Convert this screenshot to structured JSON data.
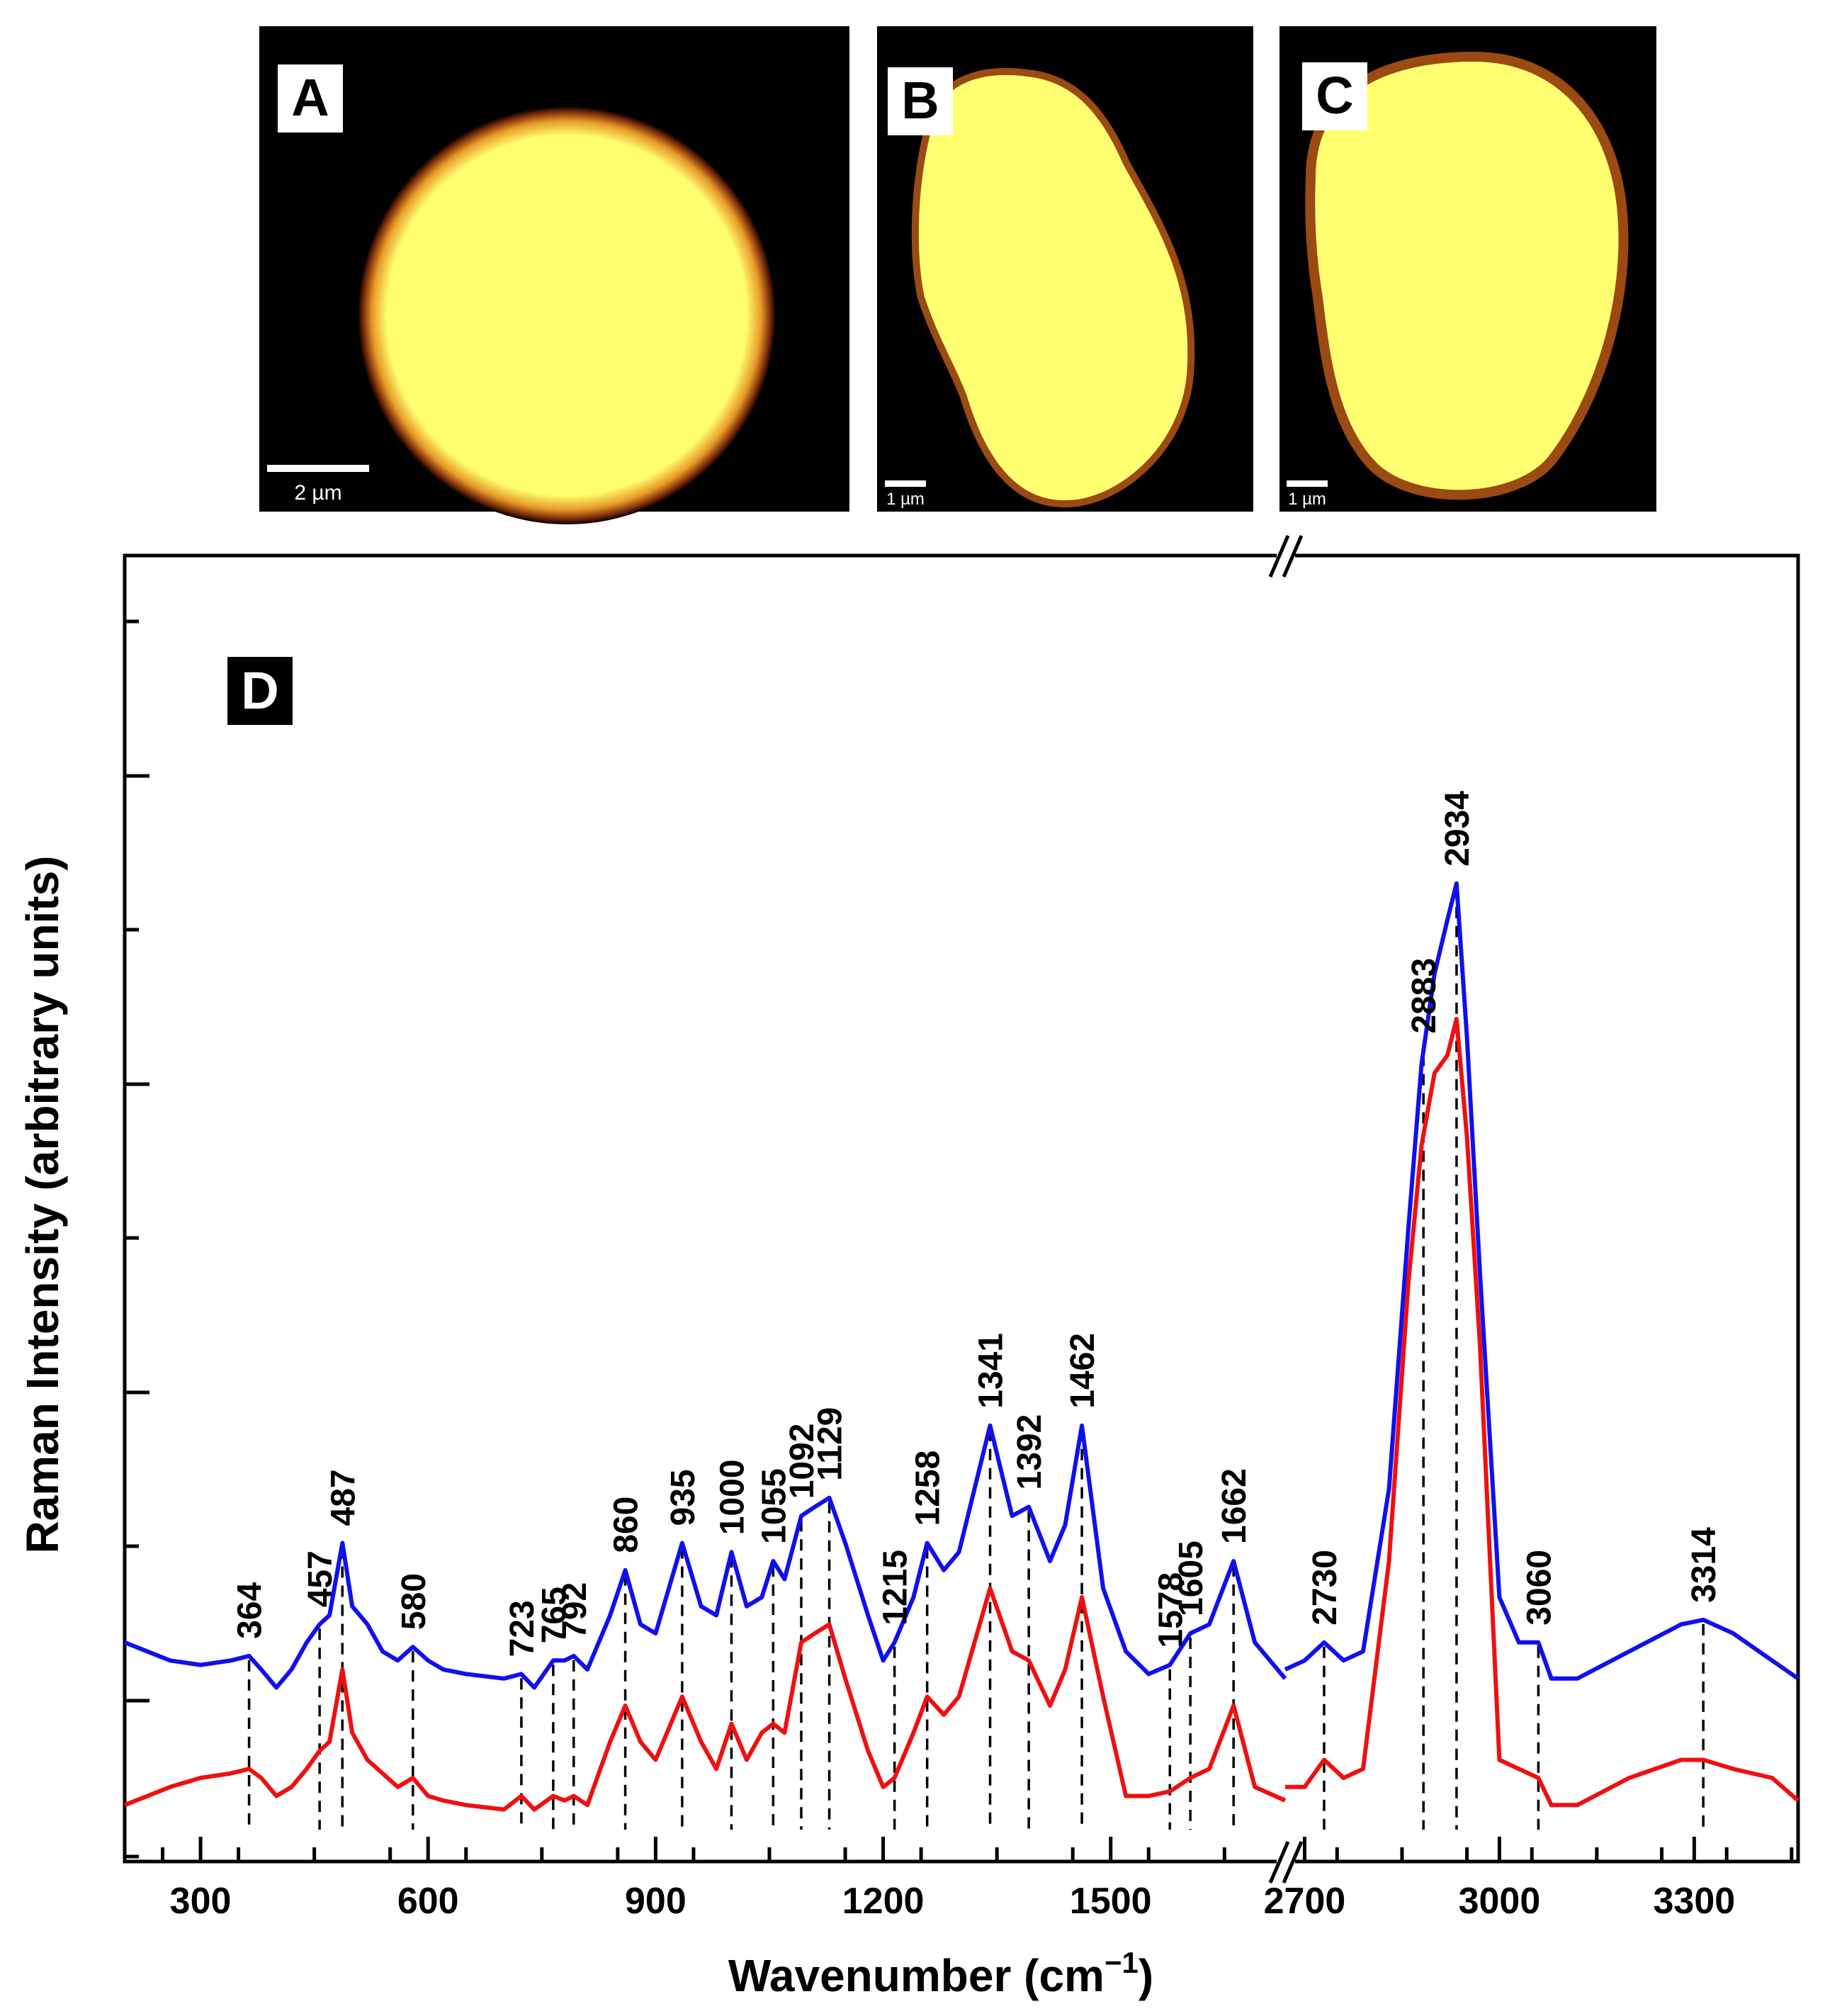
{
  "panels": [
    {
      "letter": "A",
      "scale_label": "2 µm"
    },
    {
      "letter": "B",
      "scale_label": "1 µm"
    },
    {
      "letter": "C",
      "scale_label": "1 µm"
    }
  ],
  "colors": {
    "blue_series": "#1010ee",
    "red_series": "#ee1010",
    "image_core": "#ffff70",
    "image_bg": "#000000"
  },
  "chart_data": {
    "type": "line",
    "panel_label": "D",
    "xlabel_main": "Wavenumber (cm",
    "xlabel_exp": "−1",
    "xlabel_close": ")",
    "ylabel": "Raman Intensity (arbitrary units)",
    "x_segments": [
      [
        200,
        1730
      ],
      [
        2670,
        3460
      ]
    ],
    "x_ticks_major": [
      300,
      600,
      900,
      1200,
      1500,
      2700,
      3000,
      3300
    ],
    "x_tick_labels": [
      "300",
      "600",
      "900",
      "1200",
      "1500",
      "2700",
      "3000",
      "3300"
    ],
    "ylim": [
      0,
      100
    ],
    "grid": false,
    "legend": "none",
    "annotated_peaks": [
      364,
      457,
      487,
      580,
      723,
      765,
      792,
      860,
      935,
      1000,
      1055,
      1092,
      1129,
      1215,
      1258,
      1341,
      1392,
      1462,
      1578,
      1605,
      1662,
      2730,
      2883,
      2934,
      3060,
      3314
    ],
    "peak_labels": [
      "364",
      "457",
      "487",
      "580",
      "723",
      "765",
      "792",
      "860",
      "935",
      "1000",
      "1055",
      "1092",
      "1129",
      "1215",
      "1258",
      "1341",
      "1392",
      "1462",
      "1578",
      "1605",
      "1662",
      "2730",
      "2883",
      "2934",
      "3060",
      "3314"
    ],
    "series": [
      {
        "color": "#1010ee",
        "x": [
          200,
          260,
          300,
          340,
          364,
          380,
          400,
          420,
          440,
          457,
          470,
          487,
          500,
          520,
          540,
          560,
          580,
          600,
          620,
          650,
          700,
          723,
          740,
          765,
          780,
          792,
          810,
          840,
          860,
          880,
          900,
          935,
          960,
          980,
          1000,
          1020,
          1040,
          1055,
          1070,
          1092,
          1110,
          1129,
          1150,
          1180,
          1200,
          1215,
          1240,
          1258,
          1280,
          1300,
          1341,
          1370,
          1392,
          1420,
          1440,
          1462,
          1490,
          1520,
          1550,
          1578,
          1605,
          1630,
          1662,
          1690,
          1730,
          2670,
          2700,
          2730,
          2760,
          2790,
          2830,
          2860,
          2880,
          2900,
          2920,
          2934,
          2950,
          2970,
          3000,
          3030,
          3060,
          3080,
          3120,
          3200,
          3280,
          3314,
          3360,
          3420,
          3460
        ],
        "y": [
          19,
          17,
          16.5,
          17,
          17.5,
          16,
          14,
          16,
          19,
          21,
          22,
          30,
          23,
          21,
          18,
          17,
          18.5,
          17,
          16,
          15.5,
          15,
          15.5,
          14,
          17,
          17,
          17.5,
          16,
          22,
          27,
          21,
          20,
          30,
          23,
          22,
          29,
          23,
          24,
          28,
          26,
          33,
          34,
          35,
          30,
          22,
          17,
          19,
          24,
          30,
          27,
          29,
          43,
          33,
          34,
          28,
          32,
          43,
          25,
          18,
          15.5,
          16.5,
          20,
          21,
          28,
          19,
          15,
          16,
          17,
          19,
          17,
          18,
          36,
          65,
          83,
          93,
          99,
          103,
          86,
          60,
          24,
          19,
          19,
          15,
          15,
          18,
          21,
          21.5,
          20,
          17,
          15
        ]
      },
      {
        "color": "#ee1010",
        "x": [
          200,
          260,
          300,
          340,
          364,
          380,
          400,
          420,
          440,
          457,
          470,
          487,
          500,
          520,
          540,
          560,
          580,
          600,
          620,
          650,
          700,
          723,
          740,
          765,
          780,
          792,
          810,
          840,
          860,
          880,
          900,
          935,
          960,
          980,
          1000,
          1020,
          1040,
          1055,
          1070,
          1092,
          1110,
          1129,
          1150,
          1180,
          1200,
          1215,
          1240,
          1258,
          1280,
          1300,
          1341,
          1370,
          1392,
          1420,
          1440,
          1462,
          1490,
          1520,
          1550,
          1578,
          1605,
          1630,
          1662,
          1690,
          1730,
          2670,
          2700,
          2730,
          2760,
          2790,
          2830,
          2860,
          2880,
          2900,
          2920,
          2934,
          2950,
          2970,
          3000,
          3030,
          3060,
          3080,
          3120,
          3200,
          3280,
          3314,
          3360,
          3420,
          3460
        ],
        "y": [
          1,
          3,
          4,
          4.5,
          5,
          4,
          2,
          3,
          5,
          7,
          8,
          16,
          9,
          6,
          4.5,
          3,
          4,
          2,
          1.5,
          1,
          0.5,
          2,
          0.5,
          2,
          1.5,
          2,
          1,
          8,
          12,
          8,
          6,
          13,
          8,
          5,
          10,
          6,
          9,
          10,
          9,
          19,
          20,
          21,
          15,
          7,
          3,
          4,
          9,
          13,
          11,
          13,
          25,
          18,
          17,
          12,
          16,
          24,
          13,
          2,
          2,
          2.5,
          4,
          5,
          12,
          3,
          1.5,
          3,
          3,
          6,
          4,
          5,
          28,
          59,
          74,
          82,
          84,
          88,
          75,
          52,
          6,
          5,
          4,
          1,
          1,
          4,
          6,
          6,
          5,
          4,
          1.5
        ]
      }
    ]
  }
}
